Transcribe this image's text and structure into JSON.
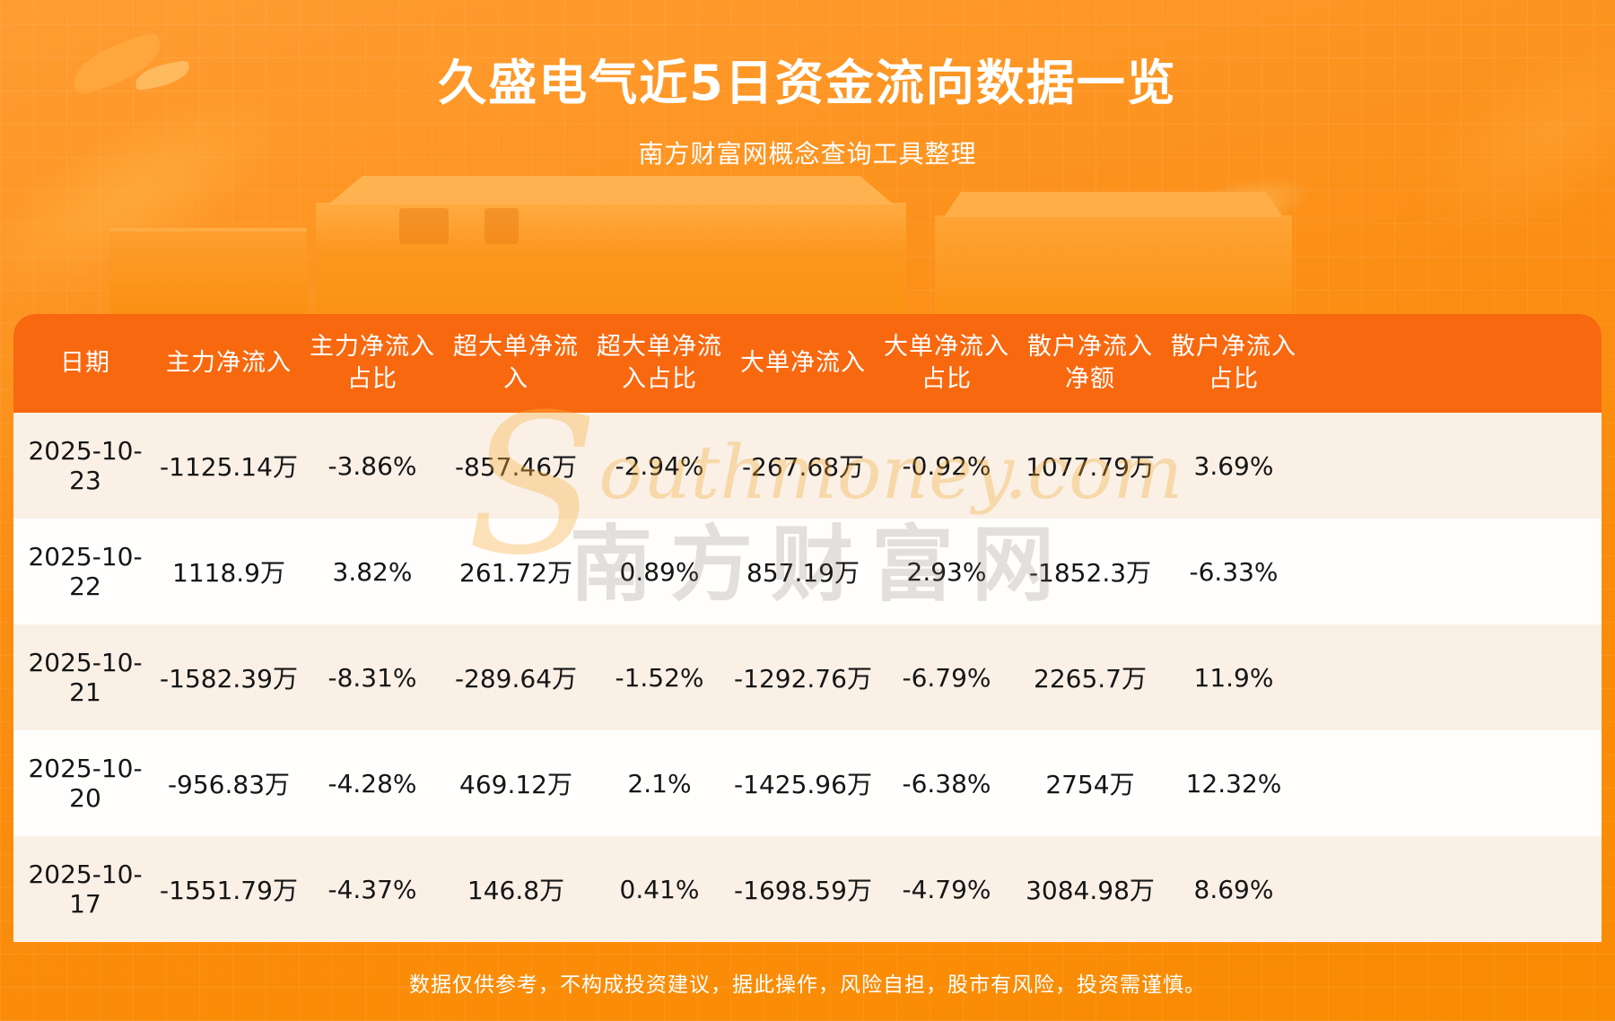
{
  "page": {
    "title": "久盛电气近5日资金流向数据一览",
    "subtitle": "南方财富网概念查询工具整理",
    "disclaimer": "数据仅供参考，不构成投资建议，据此操作，风险自担，股市有风险，投资需谨慎。"
  },
  "watermark": {
    "cjk": "南方财富网",
    "latin_initial": "S",
    "latin_rest": "outhmoney.com"
  },
  "colors": {
    "background_top": "#ff9d33",
    "background_bottom": "#f98c02",
    "header_background": "#f8680f",
    "row_odd": "#faf0e6",
    "row_even": "#fffefd",
    "title_text": "#ffffff",
    "cell_text": "#151515",
    "watermark_orange": "#f5a428"
  },
  "table": {
    "headers": [
      "日期",
      "主力净流入",
      "主力净流入\n占比",
      "超大单净流\n入",
      "超大单净流\n入占比",
      "大单净流入",
      "大单净流入\n占比",
      "散户净流入\n净额",
      "散户净流入\n占比"
    ]
  },
  "chart_data": {
    "type": "table",
    "title": "久盛电气近5日资金流向数据一览",
    "subtitle": "南方财富网概念查询工具整理",
    "columns": [
      "日期",
      "主力净流入",
      "主力净流入占比",
      "超大单净流入",
      "超大单净流入占比",
      "大单净流入",
      "大单净流入占比",
      "散户净流入净额",
      "散户净流入占比"
    ],
    "rows": [
      [
        "2025-10-23",
        "-1125.14万",
        "-3.86%",
        "-857.46万",
        "-2.94%",
        "-267.68万",
        "-0.92%",
        "1077.79万",
        "3.69%"
      ],
      [
        "2025-10-22",
        "1118.9万",
        "3.82%",
        "261.72万",
        "0.89%",
        "857.19万",
        "2.93%",
        "-1852.3万",
        "-6.33%"
      ],
      [
        "2025-10-21",
        "-1582.39万",
        "-8.31%",
        "-289.64万",
        "-1.52%",
        "-1292.76万",
        "-6.79%",
        "2265.7万",
        "11.9%"
      ],
      [
        "2025-10-20",
        "-956.83万",
        "-4.28%",
        "469.12万",
        "2.1%",
        "-1425.96万",
        "-6.38%",
        "2754万",
        "12.32%"
      ],
      [
        "2025-10-17",
        "-1551.79万",
        "-4.37%",
        "146.8万",
        "0.41%",
        "-1698.59万",
        "-4.79%",
        "3084.98万",
        "8.69%"
      ]
    ]
  }
}
